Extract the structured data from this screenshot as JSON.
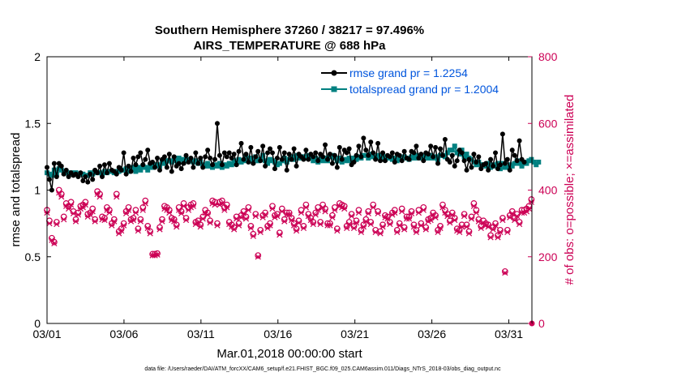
{
  "chart_data": {
    "type": "line",
    "title_line1": "Southern Hemisphere 37260 / 38217 = 97.496%",
    "title_line2": "AIRS_TEMPERATURE @ 688 hPa",
    "xlabel": "Mar.01,2018 00:00:00 start",
    "ylabel_left": "rmse and totalspread",
    "ylabel_right": "# of obs: o=possible; ×=assimilated",
    "x_ticks": [
      "03/01",
      "03/06",
      "03/11",
      "03/16",
      "03/21",
      "03/26",
      "03/31"
    ],
    "y_left_ticks": [
      "0",
      "0.5",
      "1",
      "1.5",
      "2"
    ],
    "y_right_ticks": [
      "0",
      "200",
      "400",
      "600",
      "800"
    ],
    "ylim_left": [
      0,
      2
    ],
    "ylim_right": [
      0,
      800
    ],
    "xlim": [
      0,
      31.5
    ],
    "legend": [
      "rmse grand pr = 1.2254",
      "totalspread grand pr = 1.2004"
    ],
    "colors": {
      "rmse": "#000000",
      "spread": "#008080",
      "obs": "#cc0055",
      "legend_text": "#0055dd"
    },
    "footer": "data file: /Users/raeder/DAI/ATM_forcXX/CAM6_setup/f.e21.FHIST_BGC.f09_025.CAM6assim.011/Diags_NTrS_2018-03/obs_diag_output.nc",
    "series": [
      {
        "name": "rmse",
        "values": [
          1.17,
          1.08,
          1.0,
          1.2,
          1.1,
          1.2,
          1.18,
          1.12,
          1.15,
          1.1,
          1.13,
          1.11,
          1.12,
          1.1,
          1.13,
          1.07,
          1.1,
          1.06,
          1.12,
          1.08,
          1.15,
          1.13,
          1.18,
          1.1,
          1.19,
          1.13,
          1.2,
          1.15,
          1.14,
          1.12,
          1.17,
          1.15,
          1.28,
          1.12,
          1.18,
          1.14,
          1.24,
          1.19,
          1.25,
          1.28,
          1.19,
          1.23,
          1.3,
          1.2,
          1.21,
          1.17,
          1.24,
          1.15,
          1.23,
          1.25,
          1.17,
          1.27,
          1.14,
          1.25,
          1.18,
          1.2,
          1.16,
          1.2,
          1.26,
          1.21,
          1.24,
          1.17,
          1.28,
          1.2,
          1.24,
          1.17,
          1.25,
          1.3,
          1.24,
          1.19,
          1.23,
          1.5,
          1.26,
          1.19,
          1.28,
          1.25,
          1.28,
          1.24,
          1.27,
          1.19,
          1.29,
          1.35,
          1.23,
          1.27,
          1.21,
          1.32,
          1.2,
          1.25,
          1.29,
          1.22,
          1.33,
          1.18,
          1.28,
          1.31,
          1.28,
          1.16,
          1.24,
          1.32,
          1.23,
          1.28,
          1.15,
          1.27,
          1.23,
          1.31,
          1.18,
          1.27,
          1.25,
          1.23,
          1.3,
          1.23,
          1.27,
          1.25,
          1.28,
          1.22,
          1.27,
          1.25,
          1.34,
          1.23,
          1.27,
          1.2,
          1.26,
          1.17,
          1.32,
          1.23,
          1.3,
          1.28,
          1.31,
          1.19,
          1.21,
          1.26,
          1.33,
          1.25,
          1.39,
          1.3,
          1.26,
          1.36,
          1.28,
          1.23,
          1.35,
          1.22,
          1.28,
          1.22,
          1.26,
          1.25,
          1.28,
          1.21,
          1.27,
          1.26,
          1.22,
          1.29,
          1.24,
          1.23,
          1.29,
          1.28,
          1.33,
          1.24,
          1.27,
          1.22,
          1.28,
          1.27,
          1.33,
          1.25,
          1.32,
          1.2,
          1.31,
          1.26,
          1.38,
          1.23,
          1.21,
          1.26,
          1.18,
          1.22,
          1.3,
          1.28,
          1.22,
          1.15,
          1.23,
          1.17,
          1.27,
          1.21,
          1.25,
          1.16,
          1.19,
          1.2,
          1.15,
          1.23,
          1.18,
          1.28,
          1.16,
          1.19,
          1.42,
          1.2,
          1.23,
          1.15,
          1.3,
          1.26,
          1.22,
          1.37,
          1.23,
          1.21
        ]
      },
      {
        "name": "totalspread",
        "values": [
          1.13,
          1.12,
          1.11,
          1.15,
          1.12,
          1.16,
          1.15,
          1.13,
          1.14,
          1.12,
          1.13,
          1.12,
          1.13,
          1.11,
          1.12,
          1.12,
          1.11,
          1.11,
          1.13,
          1.12,
          1.14,
          1.13,
          1.13,
          1.12,
          1.14,
          1.13,
          1.14,
          1.14,
          1.13,
          1.14,
          1.14,
          1.15,
          1.15,
          1.16,
          1.14,
          1.16,
          1.17,
          1.14,
          1.17,
          1.15,
          1.18,
          1.17,
          1.15,
          1.18,
          1.17,
          1.19,
          1.19,
          1.18,
          1.21,
          1.2,
          1.22,
          1.22,
          1.21,
          1.24,
          1.22,
          1.24,
          1.23,
          1.21,
          1.23,
          1.22,
          1.23,
          1.21,
          1.22,
          1.2,
          1.21,
          1.19,
          1.18,
          1.2,
          1.18,
          1.17,
          1.19,
          1.18,
          1.2,
          1.17,
          1.19,
          1.18,
          1.2,
          1.19,
          1.22,
          1.2,
          1.23,
          1.21,
          1.22,
          1.25,
          1.22,
          1.24,
          1.21,
          1.25,
          1.22,
          1.23,
          1.26,
          1.22,
          1.2,
          1.23,
          1.22,
          1.21,
          1.19,
          1.2,
          1.22,
          1.24,
          1.21,
          1.23,
          1.25,
          1.23,
          1.26,
          1.24,
          1.25,
          1.25,
          1.24,
          1.26,
          1.25,
          1.22,
          1.24,
          1.21,
          1.23,
          1.22,
          1.24,
          1.22,
          1.25,
          1.26,
          1.24,
          1.22,
          1.24,
          1.21,
          1.23,
          1.22,
          1.24,
          1.22,
          1.24,
          1.23,
          1.25,
          1.24,
          1.26,
          1.26,
          1.24,
          1.27,
          1.25,
          1.25,
          1.26,
          1.24,
          1.26,
          1.23,
          1.24,
          1.25,
          1.23,
          1.24,
          1.22,
          1.23,
          1.24,
          1.25,
          1.24,
          1.23,
          1.25,
          1.24,
          1.26,
          1.24,
          1.25,
          1.24,
          1.26,
          1.24,
          1.26,
          1.24,
          1.25,
          1.23,
          1.26,
          1.26,
          1.25,
          1.28,
          1.3,
          1.3,
          1.33,
          1.28,
          1.27,
          1.3,
          1.25,
          1.27,
          1.24,
          1.23,
          1.21,
          1.19,
          1.21,
          1.19,
          1.19,
          1.18,
          1.2,
          1.17,
          1.19,
          1.18,
          1.2,
          1.16,
          1.2,
          1.17,
          1.17,
          1.19,
          1.18,
          1.2,
          1.22,
          1.2,
          1.18,
          1.21,
          1.2,
          1.22,
          1.23,
          1.21,
          1.19,
          1.21
        ]
      },
      {
        "name": "obs_possible",
        "values": [
          340,
          308,
          256,
          244,
          304,
          400,
          388,
          320,
          360,
          352,
          364,
          336,
          312,
          332,
          352,
          356,
          364,
          328,
          332,
          344,
          312,
          396,
          388,
          320,
          316,
          348,
          340,
          300,
          312,
          388,
          276,
          284,
          300,
          336,
          348,
          312,
          316,
          340,
          284,
          312,
          348,
          368,
          292,
          276,
          208,
          208,
          210,
          288,
          312,
          352,
          348,
          340,
          316,
          312,
          296,
          348,
          336,
          360,
          316,
          348,
          356,
          360,
          304,
          308,
          296,
          320,
          340,
          332,
          308,
          368,
          364,
          300,
          364,
          368,
          348,
          356,
          304,
          296,
          288,
          320,
          300,
          324,
          336,
          320,
          348,
          292,
          268,
          328,
          204,
          280,
          324,
          332,
          292,
          300,
          352,
          324,
          328,
          272,
          344,
          312,
          332,
          332,
          316,
          300,
          284,
          308,
          340,
          292,
          356,
          328,
          316,
          304,
          332,
          348,
          304,
          356,
          344,
          300,
          300,
          324,
          348,
          284,
          360,
          356,
          352,
          292,
          304,
          328,
          292,
          308,
          340,
          280,
          296,
          312,
          336,
          304,
          356,
          280,
          336,
          276,
          296,
          324,
          320,
          304,
          332,
          340,
          280,
          300,
          344,
          288,
          320,
          320,
          336,
          296,
          280,
          340,
          300,
          348,
          288,
          312,
          316,
          332,
          324,
          280,
          292,
          356,
          340,
          328,
          308,
          332,
          316,
          284,
          280,
          296,
          328,
          296,
          276,
          320,
          360,
          340,
          312,
          292,
          308,
          300,
          296,
          264,
          288,
          300,
          264,
          280,
          316,
          156,
          280,
          324,
          336,
          316,
          328,
          304,
          340,
          340,
          344,
          352,
          372
        ]
      },
      {
        "name": "obs_assimilated",
        "values": [
          332,
          300,
          250,
          240,
          298,
          392,
          380,
          312,
          352,
          344,
          356,
          330,
          306,
          326,
          344,
          348,
          356,
          320,
          326,
          336,
          306,
          388,
          380,
          312,
          310,
          340,
          332,
          294,
          306,
          380,
          270,
          278,
          294,
          330,
          340,
          306,
          310,
          332,
          278,
          306,
          340,
          360,
          286,
          270,
          204,
          204,
          206,
          282,
          306,
          344,
          340,
          332,
          310,
          306,
          290,
          340,
          330,
          352,
          310,
          340,
          348,
          352,
          298,
          302,
          290,
          314,
          332,
          326,
          302,
          360,
          356,
          294,
          356,
          360,
          340,
          348,
          298,
          290,
          282,
          314,
          294,
          318,
          330,
          314,
          340,
          286,
          262,
          322,
          200,
          274,
          318,
          326,
          286,
          294,
          344,
          318,
          322,
          266,
          336,
          306,
          326,
          326,
          310,
          294,
          278,
          302,
          332,
          286,
          348,
          322,
          310,
          298,
          326,
          340,
          298,
          348,
          336,
          294,
          294,
          318,
          340,
          278,
          352,
          348,
          344,
          286,
          298,
          322,
          286,
          302,
          332,
          274,
          290,
          306,
          330,
          298,
          348,
          274,
          330,
          270,
          290,
          318,
          314,
          298,
          326,
          332,
          274,
          294,
          336,
          282,
          314,
          314,
          330,
          290,
          274,
          332,
          294,
          340,
          282,
          306,
          310,
          326,
          318,
          274,
          286,
          348,
          332,
          322,
          302,
          326,
          310,
          278,
          274,
          290,
          322,
          290,
          270,
          314,
          352,
          332,
          306,
          286,
          302,
          294,
          290,
          258,
          282,
          294,
          258,
          274,
          310,
          152,
          274,
          318,
          330,
          310,
          322,
          298,
          332,
          332,
          336,
          344,
          364
        ]
      }
    ]
  }
}
